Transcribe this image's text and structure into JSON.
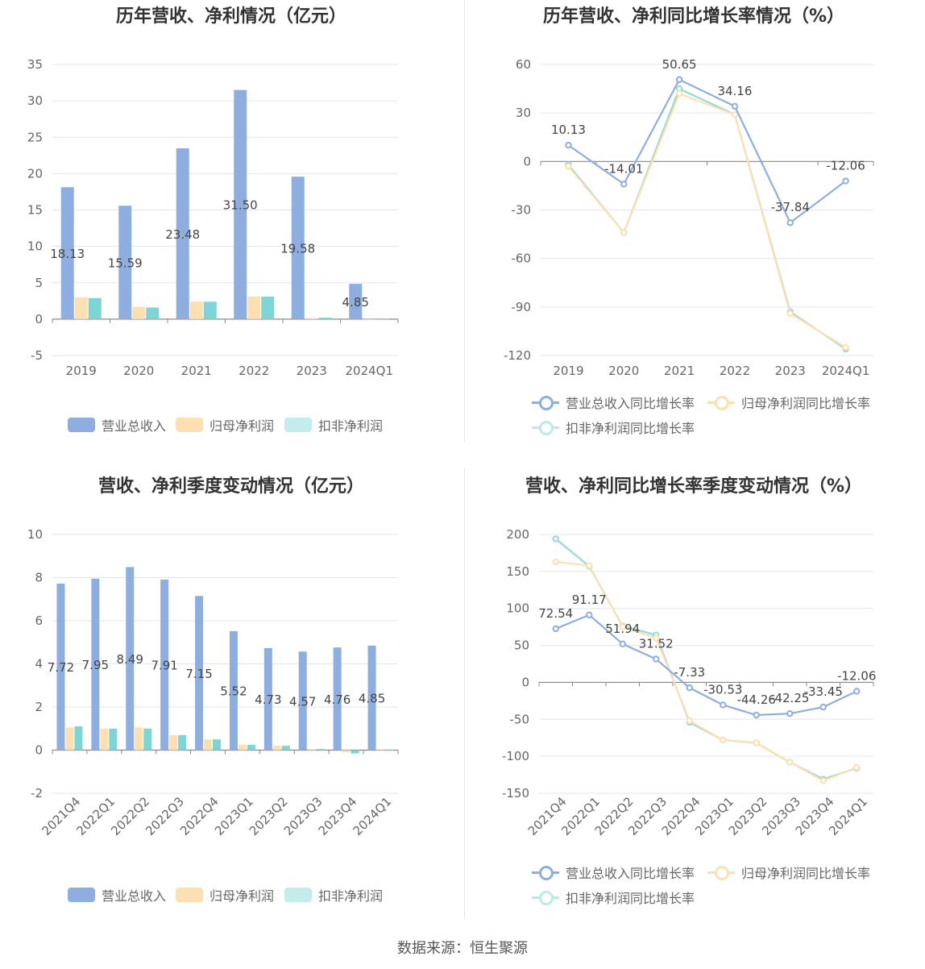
{
  "colors": {
    "revenue": "#8eaedf",
    "netprofit": "#fde0b1",
    "deducted": "#7fd4d4",
    "rev_growth": "#8eaedf",
    "np_growth": "#fde0b1",
    "ded_growth": "#93d9d6"
  },
  "legend": {
    "revenue": "营业总收入",
    "netprofit": "归母净利润",
    "deducted": "扣非净利润",
    "rev_growth": "营业总收入同比增长率",
    "np_growth": "归母净利润同比增长率",
    "ded_growth": "扣非净利润同比增长率"
  },
  "source": "数据来源：恒生聚源",
  "chart_data": [
    {
      "id": "annual_values",
      "type": "bar",
      "title": "历年营收、净利情况（亿元）",
      "categories": [
        "2019",
        "2020",
        "2021",
        "2022",
        "2023",
        "2024Q1"
      ],
      "ylim": [
        -5,
        35
      ],
      "yticks": [
        -5,
        0,
        5,
        10,
        15,
        20,
        25,
        30,
        35
      ],
      "series": [
        {
          "name": "营业总收入",
          "values": [
            18.13,
            15.59,
            23.48,
            31.5,
            19.58,
            4.85
          ],
          "labels": [
            "18.13",
            "15.59",
            "23.48",
            "31.50",
            "19.58",
            "4.85"
          ]
        },
        {
          "name": "归母净利润",
          "values": [
            3.0,
            1.7,
            2.4,
            3.1,
            0.15,
            0.01
          ]
        },
        {
          "name": "扣非净利润",
          "values": [
            2.9,
            1.6,
            2.4,
            3.1,
            0.2,
            0.02
          ]
        }
      ],
      "legend_position": "bottom",
      "grid": true
    },
    {
      "id": "annual_growth",
      "type": "line",
      "title": "历年营收、净利同比增长率情况（%）",
      "categories": [
        "2019",
        "2020",
        "2021",
        "2022",
        "2023",
        "2024Q1"
      ],
      "ylim": [
        -120,
        60
      ],
      "yticks": [
        -120,
        -90,
        -60,
        -30,
        0,
        30,
        60
      ],
      "series": [
        {
          "name": "营业总收入同比增长率",
          "values": [
            10.13,
            -14.01,
            50.65,
            34.16,
            -37.84,
            -12.06
          ],
          "labels": [
            "10.13",
            "-14.01",
            "50.65",
            "34.16",
            "-37.84",
            "-12.06"
          ]
        },
        {
          "name": "归母净利润同比增长率",
          "values": [
            -3,
            -44,
            42,
            29,
            -94,
            -115
          ]
        },
        {
          "name": "扣非净利润同比增长率",
          "values": [
            -2,
            -44,
            45,
            29,
            -93,
            -116
          ]
        }
      ],
      "legend_position": "bottom",
      "grid": true
    },
    {
      "id": "quarterly_values",
      "type": "bar",
      "title": "营收、净利季度变动情况（亿元）",
      "categories": [
        "2021Q4",
        "2022Q1",
        "2022Q2",
        "2022Q3",
        "2022Q4",
        "2023Q1",
        "2023Q2",
        "2023Q3",
        "2023Q4",
        "2024Q1"
      ],
      "ylim": [
        -2,
        10
      ],
      "yticks": [
        -2,
        0,
        2,
        4,
        6,
        8,
        10
      ],
      "series": [
        {
          "name": "营业总收入",
          "values": [
            7.72,
            7.95,
            8.49,
            7.91,
            7.15,
            5.52,
            4.73,
            4.57,
            4.76,
            4.85
          ],
          "labels": [
            "7.72",
            "7.95",
            "8.49",
            "7.91",
            "7.15",
            "5.52",
            "4.73",
            "4.57",
            "4.76",
            "4.85"
          ]
        },
        {
          "name": "归母净利润",
          "values": [
            1.05,
            1.0,
            1.05,
            0.7,
            0.5,
            0.25,
            0.2,
            0.05,
            -0.1,
            0.0
          ]
        },
        {
          "name": "扣非净利润",
          "values": [
            1.1,
            1.0,
            1.0,
            0.7,
            0.5,
            0.25,
            0.2,
            0.05,
            -0.15,
            -0.01
          ]
        }
      ],
      "legend_position": "bottom",
      "grid": true
    },
    {
      "id": "quarterly_growth",
      "type": "line",
      "title": "营收、净利同比增长率季度变动情况（%）",
      "categories": [
        "2021Q4",
        "2022Q1",
        "2022Q2",
        "2022Q3",
        "2022Q4",
        "2023Q1",
        "2023Q2",
        "2023Q3",
        "2023Q4",
        "2024Q1"
      ],
      "ylim": [
        -150,
        200
      ],
      "yticks": [
        -150,
        -100,
        -50,
        0,
        50,
        100,
        150,
        200
      ],
      "series": [
        {
          "name": "营业总收入同比增长率",
          "values": [
            72.54,
            91.17,
            51.94,
            31.52,
            -7.33,
            -30.53,
            -44.26,
            -42.25,
            -33.45,
            -12.06
          ],
          "labels": [
            "72.54",
            "91.17",
            "51.94",
            "31.52",
            "-7.33",
            "-30.53",
            "-44.26",
            "-42.25",
            "-33.45",
            "-12.06"
          ]
        },
        {
          "name": "归母净利润同比增长率",
          "values": [
            163,
            158,
            75,
            60,
            -52,
            -78,
            -82,
            -108,
            -133,
            -115
          ]
        },
        {
          "name": "扣非净利润同比增长率",
          "values": [
            194,
            157,
            76,
            64,
            -54,
            -78,
            -82,
            -108,
            -131,
            -116
          ]
        }
      ],
      "legend_position": "bottom",
      "grid": true
    }
  ]
}
